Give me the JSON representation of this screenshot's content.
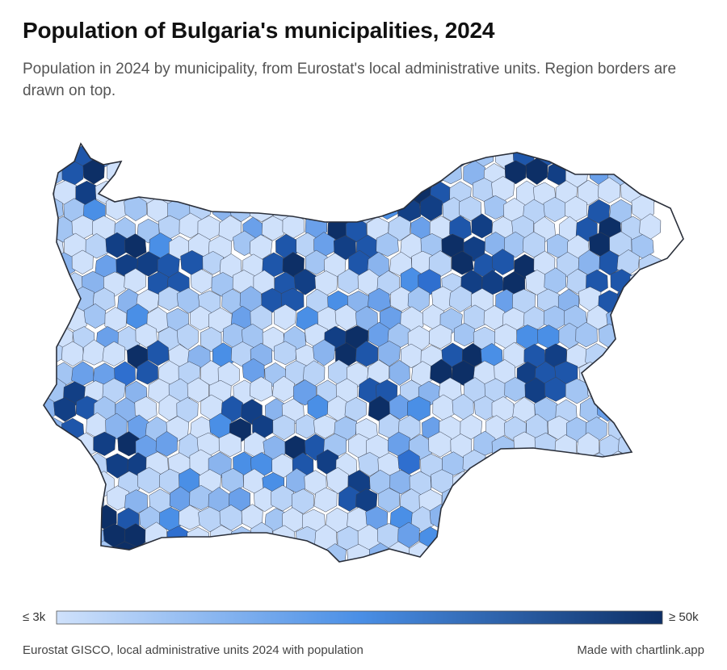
{
  "header": {
    "title": "Population of Bulgaria's municipalities, 2024",
    "subtitle": "Population in 2024 by municipality, from Eurostat's local administrative units. Region borders are drawn on top."
  },
  "legend": {
    "min_label": "≤ 3k",
    "max_label": "≥ 50k"
  },
  "footer": {
    "source": "Eurostat GISCO, local administrative units 2024 with population",
    "credit": "Made with chartlink.app"
  }
}
